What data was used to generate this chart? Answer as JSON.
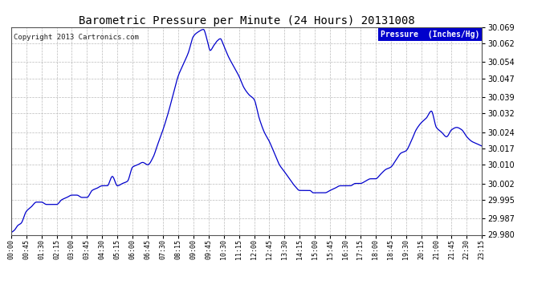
{
  "title": "Barometric Pressure per Minute (24 Hours) 20131008",
  "copyright": "Copyright 2013 Cartronics.com",
  "legend_label": "Pressure  (Inches/Hg)",
  "line_color": "#0000cc",
  "background_color": "#ffffff",
  "plot_bg_color": "#ffffff",
  "grid_color": "#bbbbbb",
  "ylim": [
    29.98,
    30.069
  ],
  "yticks": [
    29.98,
    29.987,
    29.995,
    30.002,
    30.01,
    30.017,
    30.024,
    30.032,
    30.039,
    30.047,
    30.054,
    30.062,
    30.069
  ],
  "xtick_labels": [
    "00:00",
    "00:45",
    "01:30",
    "02:15",
    "03:00",
    "03:45",
    "04:30",
    "05:15",
    "06:00",
    "06:45",
    "07:30",
    "08:15",
    "09:00",
    "09:45",
    "10:30",
    "11:15",
    "12:00",
    "12:45",
    "13:30",
    "14:15",
    "15:00",
    "15:45",
    "16:30",
    "17:15",
    "18:00",
    "18:45",
    "19:30",
    "20:15",
    "21:00",
    "21:45",
    "22:30",
    "23:15"
  ],
  "key_times": [
    0,
    10,
    20,
    30,
    45,
    60,
    75,
    90,
    105,
    120,
    135,
    150,
    165,
    180,
    195,
    210,
    225,
    240,
    255,
    270,
    285,
    300,
    315,
    330,
    345,
    360,
    375,
    390,
    405,
    420,
    435,
    450,
    465,
    480,
    495,
    510,
    525,
    540,
    555,
    570,
    580,
    590,
    600,
    610,
    620,
    630,
    645,
    660,
    675,
    690,
    705,
    720,
    735,
    750,
    765,
    780,
    795,
    810,
    825,
    840,
    855,
    865,
    875,
    885,
    895,
    900,
    910,
    920,
    930,
    945,
    960,
    975,
    990,
    1005,
    1020,
    1035,
    1050,
    1065,
    1080,
    1095,
    1110,
    1125,
    1140,
    1155,
    1170,
    1185,
    1200,
    1215,
    1230,
    1245,
    1260,
    1275,
    1290,
    1305,
    1320,
    1335,
    1350,
    1365,
    1380,
    1395
  ],
  "key_values": [
    29.981,
    29.982,
    29.984,
    29.985,
    29.99,
    29.992,
    29.994,
    29.994,
    29.993,
    29.993,
    29.993,
    29.995,
    29.996,
    29.997,
    29.997,
    29.996,
    29.996,
    29.999,
    30.0,
    30.001,
    30.001,
    30.005,
    30.001,
    30.002,
    30.003,
    30.009,
    30.01,
    30.011,
    30.01,
    30.013,
    30.019,
    30.025,
    30.032,
    30.04,
    30.048,
    30.053,
    30.058,
    30.065,
    30.067,
    30.068,
    30.064,
    30.059,
    30.061,
    30.063,
    30.064,
    30.061,
    30.056,
    30.052,
    30.048,
    30.043,
    30.04,
    30.038,
    30.03,
    30.024,
    30.02,
    30.015,
    30.01,
    30.007,
    30.004,
    30.001,
    29.999,
    29.999,
    29.999,
    29.999,
    29.998,
    29.998,
    29.998,
    29.998,
    29.998,
    29.999,
    30.0,
    30.001,
    30.001,
    30.001,
    30.002,
    30.002,
    30.003,
    30.004,
    30.004,
    30.006,
    30.008,
    30.009,
    30.012,
    30.015,
    30.016,
    30.02,
    30.025,
    30.028,
    30.03,
    30.033,
    30.026,
    30.024,
    30.022,
    30.025,
    30.026,
    30.025,
    30.022,
    30.02,
    30.019,
    30.018
  ]
}
